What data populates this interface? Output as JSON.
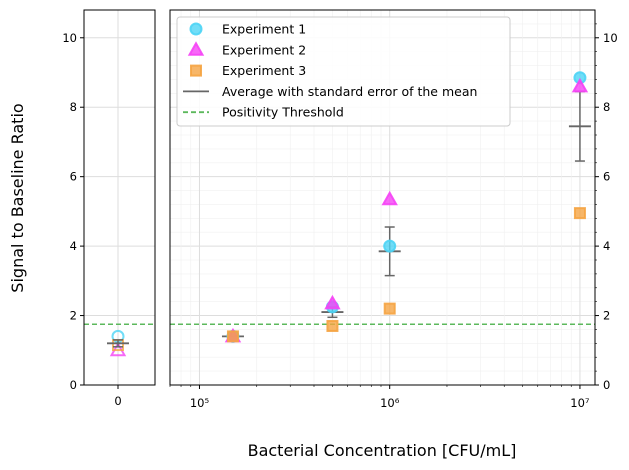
{
  "chart_data": {
    "type": "scatter",
    "title": "",
    "xlabel": "Bacterial Concentration [CFU/mL]",
    "ylabel": "Signal to Baseline Ratio",
    "ylim": [
      0,
      10.8
    ],
    "xlim_log": [
      70000,
      12000000
    ],
    "x_scale": "log",
    "grid": true,
    "legend_position": "top-left",
    "zero_panel": {
      "x_tick_label": "0",
      "points": [
        {
          "series": "Experiment 1",
          "y": 1.4
        },
        {
          "series": "Experiment 2",
          "y": 1.0
        },
        {
          "series": "Experiment 3",
          "y": 1.15
        }
      ],
      "mean": 1.2,
      "sem": 0.1
    },
    "y_ticks": [
      0,
      2,
      4,
      6,
      8,
      10
    ],
    "y_tick_labels": [
      "0",
      "2",
      "4",
      "6",
      "8",
      "10"
    ],
    "x_ticks": [
      100000,
      1000000,
      10000000
    ],
    "x_tick_labels": [
      "10⁵",
      "10⁶",
      "10⁷"
    ],
    "series": [
      {
        "name": "Experiment 1",
        "marker": "circle",
        "color": "#4dd4f5",
        "x": [
          150000,
          500000,
          1000000,
          10000000
        ],
        "y": [
          1.4,
          2.25,
          4.0,
          8.85
        ]
      },
      {
        "name": "Experiment 2",
        "marker": "triangle",
        "color": "#f542f5",
        "x": [
          150000,
          500000,
          1000000,
          10000000
        ],
        "y": [
          1.4,
          2.35,
          5.35,
          8.6
        ]
      },
      {
        "name": "Experiment 3",
        "marker": "square",
        "color": "#f5a442",
        "x": [
          150000,
          500000,
          1000000,
          10000000
        ],
        "y": [
          1.4,
          1.7,
          2.2,
          4.95
        ]
      }
    ],
    "averages": {
      "name": "Average with standard error of the mean",
      "color": "#666666",
      "x": [
        150000,
        500000,
        1000000,
        10000000
      ],
      "mean": [
        1.4,
        2.1,
        3.85,
        7.45
      ],
      "sem": [
        0.0,
        0.15,
        0.7,
        1.0
      ]
    },
    "threshold": {
      "name": "Positivity Threshold",
      "y": 1.75,
      "color": "#5cb85c"
    }
  }
}
